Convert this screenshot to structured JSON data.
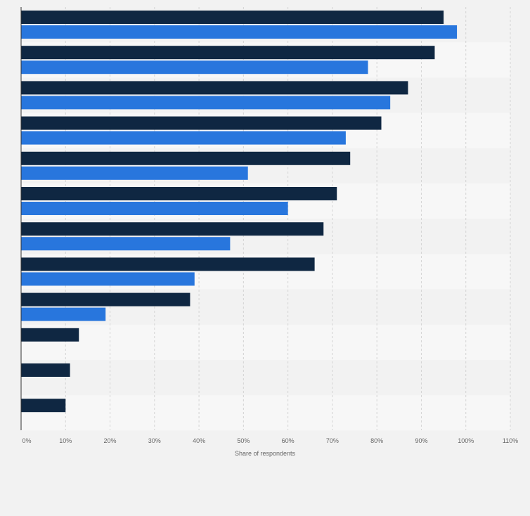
{
  "chart_data": {
    "type": "bar",
    "orientation": "horizontal",
    "categories": [
      "",
      "",
      "",
      "",
      "",
      "",
      "",
      "",
      "",
      "",
      "",
      ""
    ],
    "series": [
      {
        "values": [
          95,
          93,
          87,
          81,
          74,
          71,
          68,
          66,
          38,
          13,
          11,
          10
        ]
      },
      {
        "values": [
          98,
          78,
          83,
          73,
          51,
          60,
          47,
          39,
          19,
          null,
          null,
          null
        ]
      }
    ],
    "xlabel": "Share of respondents",
    "xlim": [
      0,
      110
    ],
    "x_ticks": [
      "0%",
      "10%",
      "20%",
      "30%",
      "40%",
      "50%",
      "60%",
      "70%",
      "80%",
      "90%",
      "100%",
      "110%"
    ],
    "grid": true,
    "legend": "none"
  },
  "colors": {
    "series_1": "#0f2742",
    "series_2": "#2876dd",
    "band_light": "#f7f7f7",
    "band_dark": "#f2f2f2",
    "grid": "#d4d4d4",
    "axis": "#333333",
    "tick_text": "#666666"
  }
}
